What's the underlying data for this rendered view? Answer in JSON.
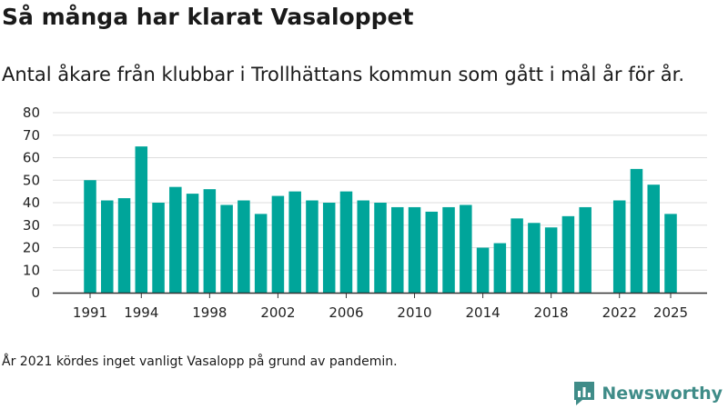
{
  "header": {
    "title": "Så många har klarat Vasaloppet",
    "subtitle": "Antal åkare från klubbar i Trollhättans kommun som gått i mål år för år."
  },
  "footer": {
    "note": "År 2021 kördes inget vanligt Vasalopp på grund av pandemin.",
    "brand": "Newsworthy"
  },
  "colors": {
    "bar": "#00a59a",
    "grid": "#dddddd",
    "axis": "#333333",
    "brand": "#3f8c88"
  },
  "chart_data": {
    "type": "bar",
    "x": [
      1991,
      1992,
      1993,
      1994,
      1995,
      1996,
      1997,
      1998,
      1999,
      2000,
      2001,
      2002,
      2003,
      2004,
      2005,
      2006,
      2007,
      2008,
      2009,
      2010,
      2011,
      2012,
      2013,
      2014,
      2015,
      2016,
      2017,
      2018,
      2019,
      2020,
      2021,
      2022,
      2023,
      2024,
      2025
    ],
    "values": [
      50,
      41,
      42,
      65,
      40,
      47,
      44,
      46,
      39,
      41,
      35,
      43,
      45,
      41,
      40,
      45,
      41,
      40,
      38,
      38,
      36,
      38,
      39,
      20,
      22,
      33,
      31,
      29,
      34,
      38,
      null,
      41,
      55,
      48,
      35
    ],
    "xticks": [
      1991,
      1994,
      1998,
      2002,
      2006,
      2010,
      2014,
      2018,
      2022,
      2025
    ],
    "xtick_labels": [
      "1991",
      "1994",
      "1998",
      "2002",
      "2006",
      "2010",
      "2014",
      "2018",
      "2022",
      "2025"
    ],
    "yticks": [
      0,
      10,
      20,
      30,
      40,
      50,
      60,
      70,
      80
    ],
    "ytick_labels": [
      "0",
      "10",
      "20",
      "30",
      "40",
      "50",
      "60",
      "70",
      "80"
    ],
    "ylim": [
      0,
      80
    ],
    "grid": true,
    "legend": "none"
  }
}
